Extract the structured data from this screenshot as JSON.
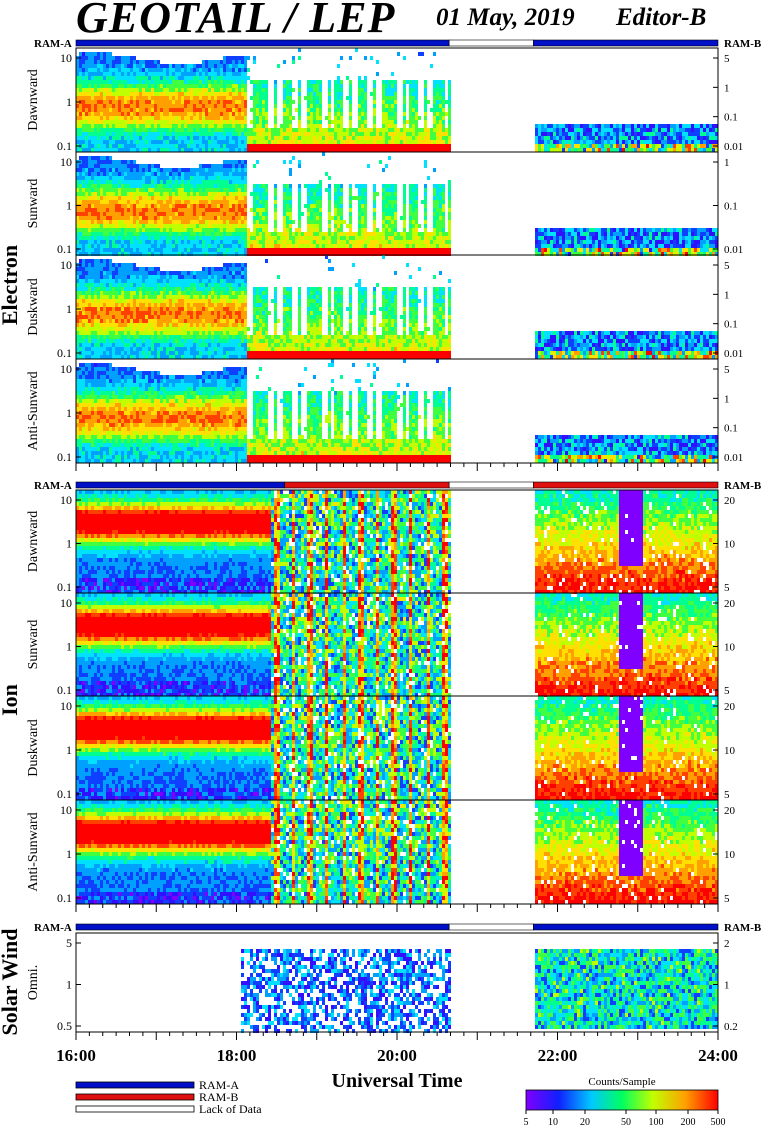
{
  "header": {
    "title": "GEOTAIL / LEP",
    "date": "01 May, 2019",
    "editor": "Editor-B"
  },
  "mode_labels": {
    "left": "RAM-A",
    "right": "RAM-B"
  },
  "groups": [
    {
      "name": "Electron",
      "panels": [
        "Dawnward",
        "Sunward",
        "Duskward",
        "Anti-Sunward"
      ]
    },
    {
      "name": "Ion",
      "panels": [
        "Dawnward",
        "Sunward",
        "Duskward",
        "Anti-Sunward"
      ]
    },
    {
      "name": "Solar Wind",
      "panels": [
        "Omni."
      ]
    }
  ],
  "x_axis": {
    "label": "Universal Time",
    "ticks": [
      "16:00",
      "18:00",
      "20:00",
      "22:00",
      "24:00"
    ],
    "range_hours": [
      16,
      24
    ]
  },
  "legend": {
    "items": [
      {
        "label": "RAM-A",
        "color": "#0010c8"
      },
      {
        "label": "RAM-B",
        "color": "#e01010"
      },
      {
        "label": "Lack of Data",
        "color": "#ffffff"
      }
    ]
  },
  "colorbar": {
    "title": "Counts/Sample",
    "ticks": [
      "5",
      "10",
      "20",
      "50",
      "100",
      "200",
      "500"
    ],
    "range": [
      5,
      500
    ],
    "scale": "log"
  },
  "chart_data": [
    {
      "type": "heatmap",
      "group": "Electron",
      "panel": "Dawnward",
      "y_left_ticks": [
        "10",
        "1",
        "0.1"
      ],
      "y_right_ticks": [
        "5",
        "1",
        "0.1",
        "0.01"
      ],
      "yscale": "log",
      "data_gap_hours": [
        20.65,
        21.7
      ],
      "mode_segments": [
        {
          "mode": "RAM-A",
          "start": 16,
          "end": 20.65
        },
        {
          "mode": "gap",
          "start": 20.65,
          "end": 21.7
        },
        {
          "mode": "RAM-A",
          "start": 21.7,
          "end": 24
        }
      ]
    },
    {
      "type": "heatmap",
      "group": "Electron",
      "panel": "Sunward",
      "y_left_ticks": [
        "10",
        "1",
        "0.1"
      ],
      "y_right_ticks": [
        "1",
        "0.1",
        "0.01"
      ],
      "yscale": "log",
      "data_gap_hours": [
        20.65,
        21.7
      ]
    },
    {
      "type": "heatmap",
      "group": "Electron",
      "panel": "Duskward",
      "y_left_ticks": [
        "10",
        "1",
        "0.1"
      ],
      "y_right_ticks": [
        "5",
        "1",
        "0.1",
        "0.01"
      ],
      "yscale": "log",
      "data_gap_hours": [
        20.65,
        21.7
      ]
    },
    {
      "type": "heatmap",
      "group": "Electron",
      "panel": "Anti-Sunward",
      "y_left_ticks": [
        "10",
        "1",
        "0.1"
      ],
      "y_right_ticks": [
        "5",
        "1",
        "0.1",
        "0.01"
      ],
      "yscale": "log",
      "data_gap_hours": [
        20.65,
        21.7
      ]
    },
    {
      "type": "heatmap",
      "group": "Ion",
      "panel": "Dawnward",
      "y_left_ticks": [
        "10",
        "1",
        "0.1"
      ],
      "y_right_ticks": [
        "20",
        "10",
        "5"
      ],
      "yscale": "log",
      "data_gap_hours": [
        20.65,
        21.7
      ],
      "mode_segments": [
        {
          "mode": "RAM-A",
          "start": 16,
          "end": 18.6
        },
        {
          "mode": "RAM-B",
          "start": 18.6,
          "end": 20.65
        },
        {
          "mode": "gap",
          "start": 20.65,
          "end": 21.7
        },
        {
          "mode": "RAM-B",
          "start": 21.7,
          "end": 24
        }
      ]
    },
    {
      "type": "heatmap",
      "group": "Ion",
      "panel": "Sunward",
      "y_left_ticks": [
        "10",
        "1",
        "0.1"
      ],
      "y_right_ticks": [
        "20",
        "10",
        "5"
      ],
      "yscale": "log",
      "data_gap_hours": [
        20.65,
        21.7
      ]
    },
    {
      "type": "heatmap",
      "group": "Ion",
      "panel": "Duskward",
      "y_left_ticks": [
        "10",
        "1",
        "0.1"
      ],
      "y_right_ticks": [
        "20",
        "10",
        "5"
      ],
      "yscale": "log",
      "data_gap_hours": [
        20.65,
        21.7
      ]
    },
    {
      "type": "heatmap",
      "group": "Ion",
      "panel": "Anti-Sunward",
      "y_left_ticks": [
        "10",
        "1",
        "0.1"
      ],
      "y_right_ticks": [
        "20",
        "10",
        "5"
      ],
      "yscale": "log",
      "data_gap_hours": [
        20.65,
        21.7
      ]
    },
    {
      "type": "heatmap",
      "group": "Solar Wind",
      "panel": "Omni.",
      "y_left_ticks": [
        "5",
        "1",
        "0.5"
      ],
      "y_right_ticks": [
        "2",
        "1",
        "0.2"
      ],
      "yscale": "log",
      "data_gap_hours": [
        20.65,
        21.7
      ],
      "mode_segments": [
        {
          "mode": "RAM-A",
          "start": 16,
          "end": 20.65
        },
        {
          "mode": "gap",
          "start": 20.65,
          "end": 21.7
        },
        {
          "mode": "RAM-A",
          "start": 21.7,
          "end": 24
        }
      ]
    }
  ]
}
